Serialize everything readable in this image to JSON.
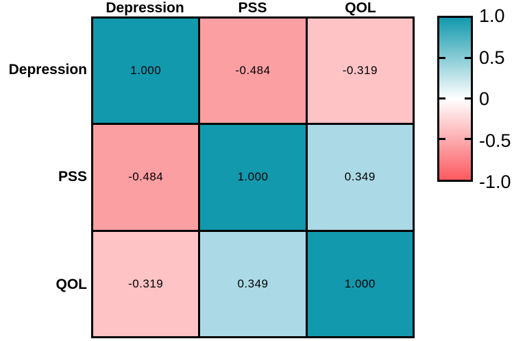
{
  "figure": {
    "background_color": "#ffffff",
    "border_color": "#000000",
    "text_color": "#000000"
  },
  "chart_data": {
    "type": "heatmap",
    "subtype": "correlation-matrix",
    "categories": [
      "Depression",
      "PSS",
      "QOL"
    ],
    "matrix": [
      [
        1.0,
        -0.484,
        -0.319
      ],
      [
        -0.484,
        1.0,
        0.349
      ],
      [
        -0.319,
        0.349,
        1.0
      ]
    ],
    "cell_labels": [
      [
        "1.000",
        "-0.484",
        "-0.319"
      ],
      [
        "-0.484",
        "1.000",
        "0.349"
      ],
      [
        "-0.319",
        "0.349",
        "1.000"
      ]
    ],
    "cell_colors": [
      [
        "#1299ad",
        "#fc9fa3",
        "#fdc3c5"
      ],
      [
        "#fc9fa3",
        "#1299ad",
        "#abd9e5"
      ],
      [
        "#fdc3c5",
        "#abd9e5",
        "#1299ad"
      ]
    ],
    "colorbar": {
      "position": "right",
      "range": [
        -1.0,
        1.0
      ],
      "ticks": [
        "1.0",
        "0.5",
        "0",
        "-0.5",
        "-1.0"
      ],
      "top_color": "#1299ad",
      "mid_color": "#ffffff",
      "bottom_color": "#fb5a60"
    },
    "grid": false,
    "legend_position": "right"
  }
}
